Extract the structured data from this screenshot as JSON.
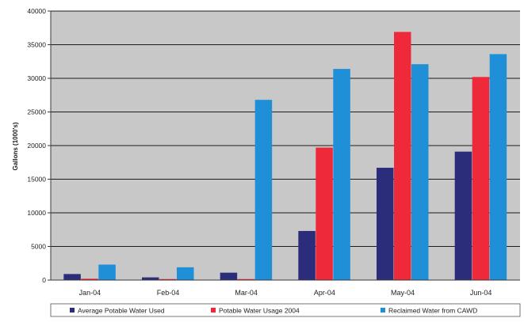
{
  "chart_data": {
    "type": "bar",
    "title": "",
    "xlabel": "",
    "ylabel": "Gallons (1000's)",
    "categories": [
      "Jan-04",
      "Feb-04",
      "Mar-04",
      "Apr-04",
      "May-04",
      "Jun-04"
    ],
    "ylim": [
      0,
      40000
    ],
    "yticks": [
      0,
      5000,
      10000,
      15000,
      20000,
      25000,
      30000,
      35000,
      40000
    ],
    "grid": true,
    "legend_position": "bottom",
    "series": [
      {
        "name": "Average Potable Water Used",
        "color": "#2b2d7a",
        "values": [
          900,
          400,
          1100,
          7300,
          16700,
          19100
        ]
      },
      {
        "name": "Potable Water Usage 2004",
        "color": "#ee2a3a",
        "values": [
          200,
          150,
          150,
          19700,
          36900,
          30200
        ]
      },
      {
        "name": "Reclaimed Water from CAWD",
        "color": "#1f90d8",
        "values": [
          2300,
          1900,
          26800,
          31400,
          32100,
          33600
        ]
      }
    ],
    "colors": {
      "plot_background": "#c8c8c8",
      "gridline": "#1c1c1c",
      "axis": "#3a3a3a",
      "text": "#222222"
    }
  }
}
